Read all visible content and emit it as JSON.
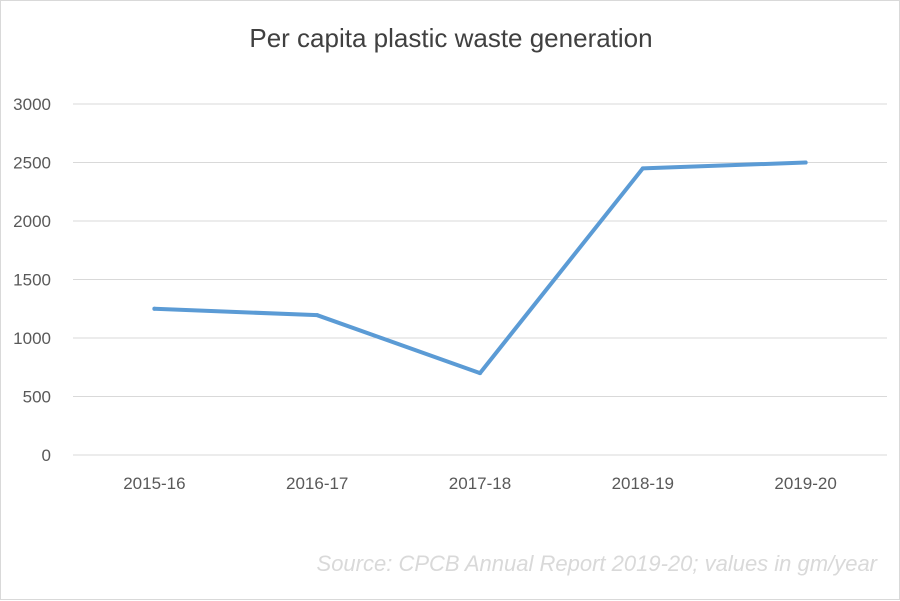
{
  "chart_data": {
    "type": "line",
    "title": "Per capita plastic waste generation",
    "categories": [
      "2015-16",
      "2016-17",
      "2017-18",
      "2018-19",
      "2019-20"
    ],
    "series": [
      {
        "values": [
          1250,
          1195,
          700,
          2450,
          2500
        ],
        "color": "#5b9bd5"
      }
    ],
    "y_ticks": [
      0,
      500,
      1000,
      1500,
      2000,
      2500,
      3000
    ],
    "ylim": [
      0,
      3000
    ],
    "grid": true,
    "legend": false,
    "xlabel": "",
    "ylabel": ""
  },
  "footer": {
    "source": "Source: CPCB Annual Report 2019-20; values in gm/year"
  },
  "colors": {
    "line": "#5b9bd5",
    "grid": "#d9d9d9",
    "text": "#595959"
  }
}
